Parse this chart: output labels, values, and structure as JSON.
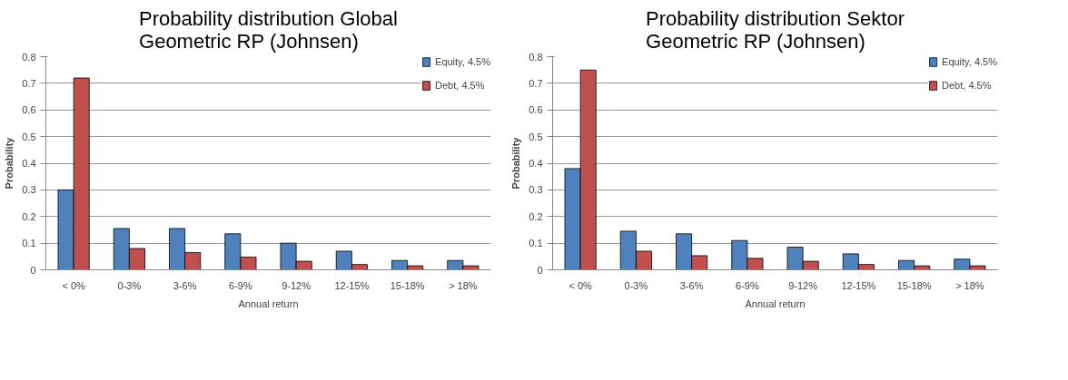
{
  "chart_data": [
    {
      "type": "bar",
      "title": "Probability distribution Global Geometric RP (Johnsen)",
      "xlabel": "Annual return",
      "ylabel": "Probability",
      "categories": [
        "< 0%",
        "0-3%",
        "3-6%",
        "6-9%",
        "9-12%",
        "12-15%",
        "15-18%",
        "> 18%"
      ],
      "series": [
        {
          "name": "Equity, 4.5%",
          "color": "#4f81bd",
          "values": [
            0.3,
            0.155,
            0.155,
            0.135,
            0.1,
            0.07,
            0.035,
            0.035
          ]
        },
        {
          "name": "Debt, 4.5%",
          "color": "#c0504d",
          "values": [
            0.72,
            0.08,
            0.065,
            0.048,
            0.032,
            0.02,
            0.015,
            0.015
          ]
        }
      ],
      "ylim": [
        0,
        0.8
      ],
      "yticks": [
        0,
        0.1,
        0.2,
        0.3,
        0.4,
        0.5,
        0.6,
        0.7,
        0.8
      ],
      "grid": "y",
      "legend": "top right"
    },
    {
      "type": "bar",
      "title": "Probability distribution Sektor Geometric RP (Johnsen)",
      "xlabel": "Annual return",
      "ylabel": "Probability",
      "categories": [
        "< 0%",
        "0-3%",
        "3-6%",
        "6-9%",
        "9-12%",
        "12-15%",
        "15-18%",
        "> 18%"
      ],
      "series": [
        {
          "name": "Equity, 4.5%",
          "color": "#4f81bd",
          "values": [
            0.38,
            0.145,
            0.135,
            0.11,
            0.085,
            0.06,
            0.035,
            0.04
          ]
        },
        {
          "name": "Debt, 4.5%",
          "color": "#c0504d",
          "values": [
            0.75,
            0.07,
            0.053,
            0.043,
            0.032,
            0.02,
            0.015,
            0.015
          ]
        }
      ],
      "ylim": [
        0,
        0.8
      ],
      "yticks": [
        0,
        0.1,
        0.2,
        0.3,
        0.4,
        0.5,
        0.6,
        0.7,
        0.8
      ],
      "grid": "y",
      "legend": "top right"
    }
  ]
}
